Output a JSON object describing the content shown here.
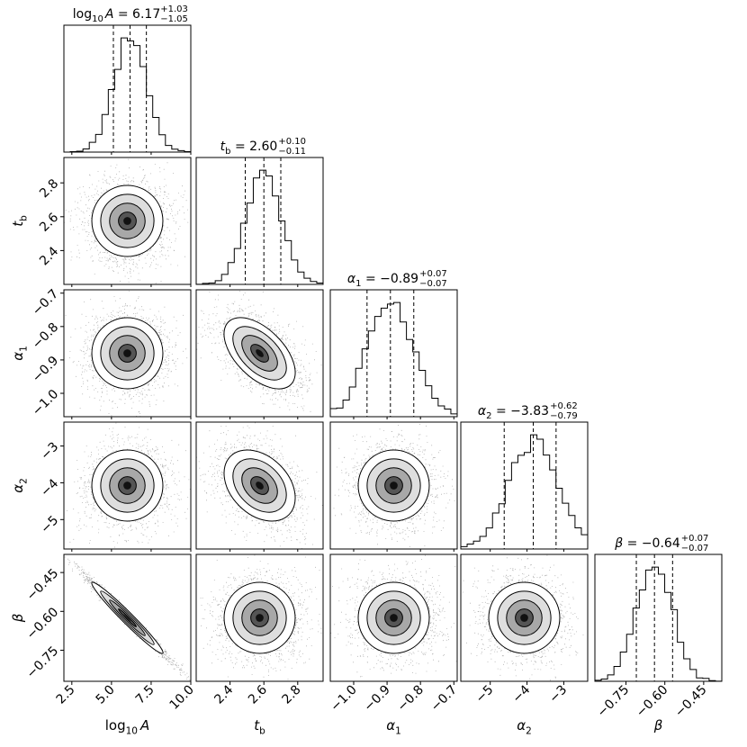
{
  "chart_data": {
    "type": "corner",
    "description_style": "posterior corner plot",
    "parameters": [
      {
        "key": "logA",
        "label": "log₁₀A",
        "label_base": "log",
        "label_sub": "10",
        "label_tail": "A",
        "title_lhs": "log₁₀A",
        "median": "6.17",
        "plus": "+1.03",
        "minus": "−1.05",
        "range": [
          2.0,
          10.0
        ],
        "ticks": [
          "2.5",
          "5.0",
          "7.5",
          "10.0"
        ],
        "tick_values": [
          2.5,
          5.0,
          7.5,
          10.0
        ],
        "quantiles": [
          5.12,
          6.17,
          7.2
        ],
        "mean": 6.17,
        "sd": 1.04
      },
      {
        "key": "tb",
        "label": "t_b",
        "label_base": "t",
        "label_sub": "b",
        "label_tail": "",
        "title_lhs": "t_b",
        "median": "2.60",
        "plus": "+0.10",
        "minus": "−0.11",
        "range": [
          2.2,
          2.95
        ],
        "ticks": [
          "2.4",
          "2.6",
          "2.8"
        ],
        "tick_values": [
          2.4,
          2.6,
          2.8
        ],
        "quantiles": [
          2.49,
          2.6,
          2.7
        ],
        "mean": 2.6,
        "sd": 0.105
      },
      {
        "key": "a1",
        "label": "α₁",
        "label_base": "α",
        "label_sub": "1",
        "label_tail": "",
        "title_lhs": "α₁",
        "median": "−0.89",
        "plus": "+0.07",
        "minus": "−0.07",
        "range": [
          -1.07,
          -0.69
        ],
        "ticks": [
          "−1.0",
          "−0.9",
          "−0.8",
          "−0.7"
        ],
        "tick_values": [
          -1.0,
          -0.9,
          -0.8,
          -0.7
        ],
        "quantiles": [
          -0.96,
          -0.89,
          -0.82
        ],
        "mean": -0.89,
        "sd": 0.07
      },
      {
        "key": "a2",
        "label": "α₂",
        "label_base": "α",
        "label_sub": "2",
        "label_tail": "",
        "title_lhs": "α₂",
        "median": "−3.83",
        "plus": "+0.62",
        "minus": "−0.79",
        "range": [
          -5.8,
          -2.35
        ],
        "ticks": [
          "−5",
          "−4",
          "−3"
        ],
        "tick_values": [
          -5,
          -4,
          -3
        ],
        "quantiles": [
          -4.62,
          -3.83,
          -3.21
        ],
        "mean": -3.83,
        "sd": 0.7
      },
      {
        "key": "beta",
        "label": "β",
        "label_base": "β",
        "label_sub": "",
        "label_tail": "",
        "title_lhs": "β",
        "median": "−0.64",
        "plus": "+0.07",
        "minus": "−0.07",
        "range": [
          -0.87,
          -0.38
        ],
        "ticks": [
          "−0.75",
          "−0.60",
          "−0.45"
        ],
        "tick_values": [
          -0.75,
          -0.6,
          -0.45
        ],
        "quantiles": [
          -0.71,
          -0.64,
          -0.57
        ],
        "mean": -0.64,
        "sd": 0.07
      }
    ],
    "correlations": {
      "tb|logA": 0.0,
      "a1|logA": 0.0,
      "a2|logA": 0.0,
      "beta|logA": -0.99,
      "a1|tb": -0.55,
      "a2|tb": -0.35,
      "beta|tb": 0.0,
      "a2|a1": 0.0,
      "beta|a1": 0.0,
      "beta|a2": 0.0
    },
    "contour_levels_sigma": [
      0.5,
      1.0,
      1.5,
      2.0
    ],
    "quantile_levels": [
      0.16,
      0.5,
      0.84
    ],
    "histogram": "step",
    "dashed_quantile_lines": true,
    "colors": {
      "line": "#000000",
      "points": "#000000",
      "fill": "#000000"
    }
  }
}
